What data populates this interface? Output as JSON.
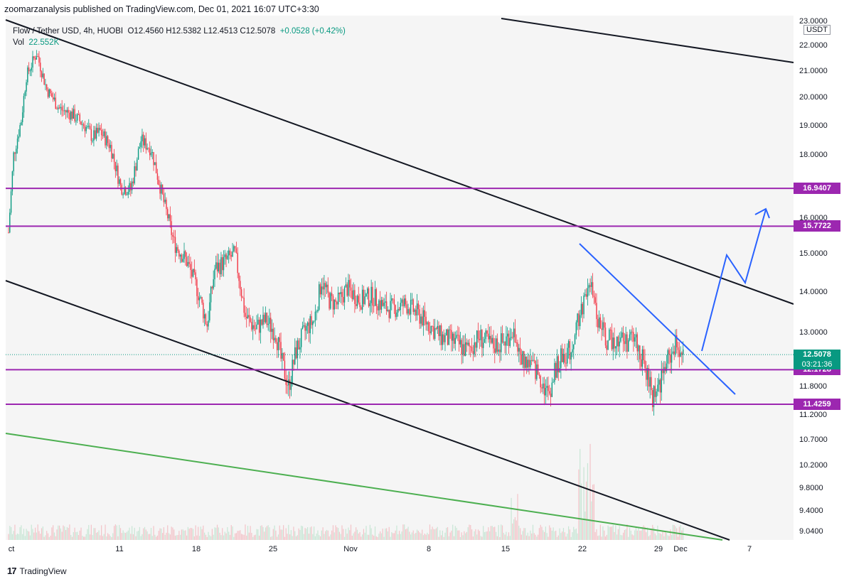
{
  "header": {
    "published": "zoomarzanalysis published on TradingView.com, Dec 01, 2021 16:07 UTC+3:30"
  },
  "legend": {
    "symbol": "Flow / Tether USD, 4h, HUOBI",
    "ohlc": "O12.4560  H12.5382  L12.4513  C12.5078",
    "change": "+0.0528 (+0.42%)",
    "vol_label": "Vol",
    "vol_value": "22.552K"
  },
  "axis": {
    "unit": "USDT"
  },
  "colors": {
    "magenta": "#9c27b0",
    "teal": "#089981",
    "blue": "#2962ff",
    "red": "#f23645",
    "green": "#4caf50",
    "black": "#131722"
  },
  "chart_data": {
    "type": "candlestick",
    "y_ticks": [
      "23.0000",
      "22.0000",
      "21.0000",
      "20.0000",
      "19.0000",
      "18.0000",
      "16.0000",
      "15.0000",
      "14.0000",
      "13.0000",
      "11.8000",
      "11.2000",
      "10.7000",
      "10.2000",
      "9.8000",
      "9.4000",
      "9.0400"
    ],
    "x_ticks": [
      "ct",
      "11",
      "18",
      "25",
      "Nov",
      "8",
      "15",
      "22",
      "29",
      "Dec",
      "7"
    ],
    "horizontal_levels": [
      16.9407,
      15.7722,
      12.1728,
      11.4259
    ],
    "level_labels": [
      "16.9407",
      "15.7722",
      "12.1728",
      "11.4259"
    ],
    "last_price": {
      "value": "12.5078",
      "countdown": "03:21:36"
    },
    "ohlc_legend": {
      "open": 12.456,
      "high": 12.5382,
      "low": 12.4513,
      "close": 12.5078
    }
  },
  "footer": {
    "brand": "TradingView",
    "logo": "tv-logo-icon"
  }
}
